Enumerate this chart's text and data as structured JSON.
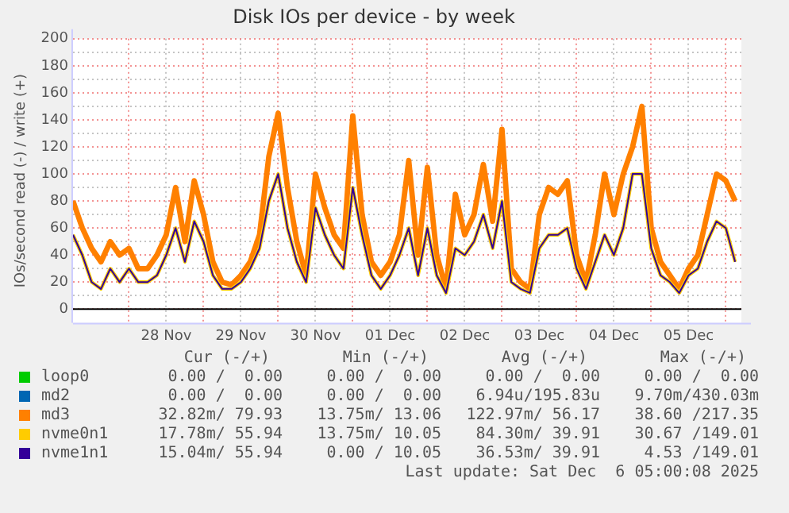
{
  "chart_data": {
    "type": "line",
    "title": "Disk IOs per device - by week",
    "ylabel": "IOs/second read (-) / write (+)",
    "x": [
      "2025-11-27T06:00",
      "2025-11-27T09:00",
      "2025-11-27T12:00",
      "2025-11-27T15:00",
      "2025-11-27T18:00",
      "2025-11-27T21:00",
      "2025-11-28T00:00",
      "2025-11-28T03:00",
      "2025-11-28T06:00",
      "2025-11-28T09:00",
      "2025-11-28T12:00",
      "2025-11-28T15:00",
      "2025-11-28T18:00",
      "2025-11-28T21:00",
      "2025-11-29T00:00",
      "2025-11-29T03:00",
      "2025-11-29T06:00",
      "2025-11-29T09:00",
      "2025-11-29T12:00",
      "2025-11-29T15:00",
      "2025-11-29T18:00",
      "2025-11-29T21:00",
      "2025-11-30T00:00",
      "2025-11-30T03:00",
      "2025-11-30T06:00",
      "2025-11-30T09:00",
      "2025-11-30T12:00",
      "2025-11-30T15:00",
      "2025-11-30T18:00",
      "2025-11-30T21:00",
      "2025-12-01T00:00",
      "2025-12-01T03:00",
      "2025-12-01T06:00",
      "2025-12-01T09:00",
      "2025-12-01T12:00",
      "2025-12-01T15:00",
      "2025-12-01T18:00",
      "2025-12-01T21:00",
      "2025-12-02T00:00",
      "2025-12-02T03:00",
      "2025-12-02T06:00",
      "2025-12-02T09:00",
      "2025-12-02T12:00",
      "2025-12-02T15:00",
      "2025-12-02T18:00",
      "2025-12-02T21:00",
      "2025-12-03T00:00",
      "2025-12-03T03:00",
      "2025-12-03T06:00",
      "2025-12-03T09:00",
      "2025-12-03T12:00",
      "2025-12-03T15:00",
      "2025-12-03T18:00",
      "2025-12-03T21:00",
      "2025-12-04T00:00",
      "2025-12-04T03:00",
      "2025-12-04T06:00",
      "2025-12-04T09:00",
      "2025-12-04T12:00",
      "2025-12-04T15:00",
      "2025-12-04T18:00",
      "2025-12-04T21:00",
      "2025-12-05T00:00",
      "2025-12-05T03:00",
      "2025-12-05T06:00",
      "2025-12-05T09:00",
      "2025-12-05T12:00",
      "2025-12-05T15:00",
      "2025-12-05T18:00",
      "2025-12-05T21:00",
      "2025-12-06T00:00",
      "2025-12-06T03:00"
    ],
    "series": [
      {
        "name": "loop0",
        "color": "#00cc00",
        "values": [
          null,
          null,
          null,
          null,
          null,
          null,
          null,
          null,
          null,
          null,
          null,
          null,
          null,
          null,
          null,
          null,
          null,
          null,
          null,
          null,
          null,
          null,
          null,
          null,
          null,
          null,
          null,
          null,
          null,
          null,
          null,
          null,
          null,
          null,
          null,
          null,
          null,
          null,
          null,
          null,
          null,
          null,
          null,
          null,
          null,
          null,
          null,
          null,
          null,
          null,
          null,
          null,
          null,
          null,
          null,
          null,
          null,
          null,
          null,
          null,
          null,
          null,
          null,
          null,
          null,
          null,
          null,
          null,
          null,
          null,
          null,
          null
        ]
      },
      {
        "name": "md2",
        "color": "#0066b3",
        "values": [
          null,
          null,
          null,
          null,
          null,
          null,
          null,
          null,
          null,
          null,
          null,
          null,
          null,
          null,
          null,
          null,
          null,
          null,
          null,
          null,
          null,
          null,
          null,
          null,
          null,
          null,
          null,
          null,
          null,
          null,
          null,
          null,
          null,
          null,
          null,
          null,
          null,
          null,
          null,
          null,
          null,
          null,
          null,
          null,
          null,
          null,
          null,
          null,
          null,
          null,
          null,
          null,
          null,
          null,
          null,
          null,
          null,
          null,
          null,
          null,
          null,
          null,
          null,
          null,
          null,
          null,
          null,
          null,
          null,
          null,
          null,
          null
        ]
      },
      {
        "name": "md3",
        "color": "#ff8000",
        "values": [
          80,
          60,
          45,
          35,
          50,
          40,
          45,
          30,
          30,
          40,
          55,
          90,
          50,
          95,
          70,
          35,
          20,
          18,
          25,
          35,
          55,
          113,
          145,
          90,
          50,
          25,
          100,
          75,
          55,
          45,
          143,
          70,
          35,
          25,
          35,
          55,
          110,
          40,
          105,
          40,
          15,
          85,
          55,
          70,
          107,
          65,
          133,
          30,
          20,
          15,
          70,
          90,
          85,
          95,
          40,
          20,
          55,
          100,
          70,
          100,
          120,
          150,
          60,
          35,
          25,
          15,
          30,
          40,
          70,
          100,
          95,
          80
        ]
      },
      {
        "name": "nvme0n1",
        "color": "#ffcc00",
        "values": [
          55,
          40,
          20,
          15,
          30,
          20,
          30,
          20,
          20,
          25,
          40,
          60,
          35,
          65,
          50,
          25,
          15,
          15,
          20,
          30,
          45,
          80,
          100,
          60,
          35,
          20,
          75,
          55,
          40,
          30,
          90,
          55,
          25,
          15,
          25,
          40,
          60,
          25,
          60,
          25,
          12,
          45,
          40,
          50,
          70,
          45,
          80,
          20,
          15,
          12,
          45,
          55,
          55,
          60,
          30,
          15,
          35,
          55,
          40,
          60,
          100,
          100,
          45,
          25,
          20,
          12,
          25,
          30,
          50,
          65,
          60,
          35
        ]
      },
      {
        "name": "nvme1n1",
        "color": "#330099",
        "values": [
          55,
          40,
          20,
          15,
          30,
          20,
          30,
          20,
          20,
          25,
          40,
          60,
          35,
          65,
          50,
          25,
          15,
          15,
          20,
          30,
          45,
          80,
          100,
          60,
          35,
          20,
          75,
          55,
          40,
          30,
          90,
          55,
          25,
          15,
          25,
          40,
          60,
          25,
          60,
          25,
          12,
          45,
          40,
          50,
          70,
          45,
          80,
          20,
          15,
          12,
          45,
          55,
          55,
          60,
          30,
          15,
          35,
          55,
          40,
          60,
          100,
          100,
          45,
          25,
          20,
          12,
          25,
          30,
          50,
          65,
          60,
          35
        ]
      }
    ],
    "xlim": [
      "2025-11-27T06:00",
      "2025-12-06T05:00"
    ],
    "xticks": [
      {
        "value": "2025-11-28T00:00",
        "label": null
      },
      {
        "value": "2025-11-28T12:00",
        "label": "28 Nov"
      },
      {
        "value": "2025-11-29T00:00",
        "label": null
      },
      {
        "value": "2025-11-29T12:00",
        "label": "29 Nov"
      },
      {
        "value": "2025-11-30T00:00",
        "label": null
      },
      {
        "value": "2025-11-30T12:00",
        "label": "30 Nov"
      },
      {
        "value": "2025-12-01T00:00",
        "label": null
      },
      {
        "value": "2025-12-01T12:00",
        "label": "01 Dec"
      },
      {
        "value": "2025-12-02T00:00",
        "label": null
      },
      {
        "value": "2025-12-02T12:00",
        "label": "02 Dec"
      },
      {
        "value": "2025-12-03T00:00",
        "label": null
      },
      {
        "value": "2025-12-03T12:00",
        "label": "03 Dec"
      },
      {
        "value": "2025-12-04T00:00",
        "label": null
      },
      {
        "value": "2025-12-04T12:00",
        "label": "04 Dec"
      },
      {
        "value": "2025-12-05T00:00",
        "label": null
      },
      {
        "value": "2025-12-05T12:00",
        "label": "05 Dec"
      },
      {
        "value": "2025-12-06T00:00",
        "label": null
      }
    ],
    "ylim": [
      -10,
      200
    ],
    "yticks": [
      0,
      {
        "value": 10,
        "label": null
      },
      20,
      {
        "value": 30,
        "label": null
      },
      40,
      {
        "value": 50,
        "label": null
      },
      60,
      {
        "value": 70,
        "label": null
      },
      80,
      {
        "value": 90,
        "label": null
      },
      100,
      {
        "value": 110,
        "label": null
      },
      120,
      {
        "value": 130,
        "label": null
      },
      140,
      {
        "value": 150,
        "label": null
      },
      160,
      {
        "value": 170,
        "label": null
      },
      180,
      {
        "value": 190,
        "label": null
      },
      200
    ],
    "grid": true,
    "legend": "bottom",
    "marker": "none",
    "line_style": "solid",
    "annotations": [
      "Cur (-/+)",
      "Min (-/+)",
      "Avg (-/+)",
      "Max (-/+)",
      "0.00 /  0.00",
      "0.00 /  0.00",
      "0.00 /  0.00",
      "0.00 /  0.00",
      "0.00 /  0.00",
      "0.00 /  0.00",
      "6.94u/195.83u",
      "9.70m/430.03m",
      "32.82m/ 79.93",
      "13.75m/ 13.06",
      "122.97m/ 56.17",
      "38.60 /217.35",
      "17.78m/ 55.94",
      "13.75m/ 10.05",
      "84.30m/ 39.91",
      "30.67 /149.01",
      "15.04m/ 55.94",
      "0.00 / 10.05",
      "36.53m/ 39.91",
      "4.53 /149.01",
      "Last update: Sat Dec  6 05:00:08 2025"
    ]
  }
}
